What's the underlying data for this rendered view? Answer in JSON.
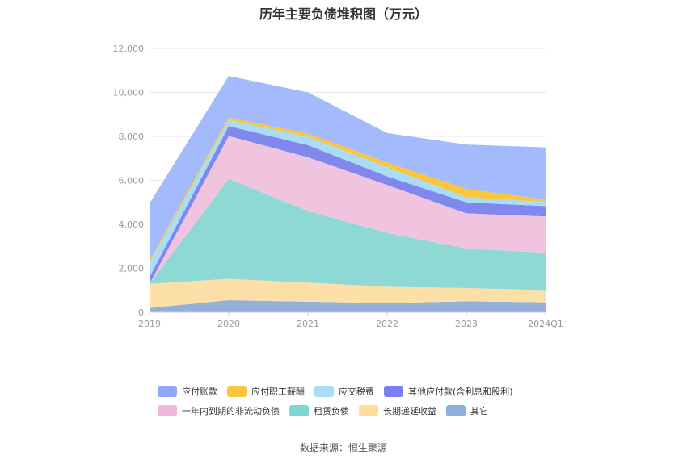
{
  "chart_data": {
    "type": "area",
    "stacked": true,
    "title": "历年主要负债堆积图（万元）",
    "source": "数据来源：恒生聚源",
    "x": [
      "2019",
      "2020",
      "2021",
      "2022",
      "2023",
      "2024Q1"
    ],
    "ylim": [
      0,
      12000
    ],
    "yticks": [
      "0",
      "2,000",
      "4,000",
      "6,000",
      "8,000",
      "10,000",
      "12,000"
    ],
    "grid": true,
    "legend_position": "bottom",
    "series": [
      {
        "name": "其它",
        "color": "#93b0dc",
        "values": [
          200,
          550,
          480,
          420,
          500,
          450
        ]
      },
      {
        "name": "长期递延收益",
        "color": "#fddfa8",
        "values": [
          1100,
          970,
          870,
          740,
          600,
          560
        ]
      },
      {
        "name": "租赁负债",
        "color": "#8fd9d4",
        "values": [
          0,
          4550,
          3250,
          2450,
          1800,
          1700
        ]
      },
      {
        "name": "一年内到期的非流动负债",
        "color": "#f0c3df",
        "values": [
          0,
          1950,
          2450,
          2180,
          1600,
          1650
        ]
      },
      {
        "name": "其他应付款(含利息和股利)",
        "color": "#8088ee",
        "values": [
          300,
          450,
          550,
          390,
          500,
          470
        ]
      },
      {
        "name": "应交税费",
        "color": "#a9dcf7",
        "values": [
          650,
          270,
          380,
          420,
          230,
          190
        ]
      },
      {
        "name": "应付职工薪酬",
        "color": "#fcc63c",
        "values": [
          100,
          120,
          150,
          220,
          380,
          100
        ]
      },
      {
        "name": "应付账款",
        "color": "#a3bafd",
        "values": [
          2600,
          1890,
          1870,
          1330,
          2020,
          2380
        ]
      }
    ]
  },
  "legend_rows": [
    [
      {
        "name": "应付账款",
        "color": "#8fa8f8"
      },
      {
        "name": "应付职工薪酬",
        "color": "#fcc63c"
      },
      {
        "name": "应交税费",
        "color": "#a9dcf7"
      },
      {
        "name": "其他应付款(含利息和股利)",
        "color": "#7b7ff0"
      }
    ],
    [
      {
        "name": "一年内到期的非流动负债",
        "color": "#f0b9da"
      },
      {
        "name": "租赁负债",
        "color": "#7fd6d0"
      },
      {
        "name": "长期递延收益",
        "color": "#fedc9e"
      },
      {
        "name": "其它",
        "color": "#8fb0de"
      }
    ]
  ]
}
